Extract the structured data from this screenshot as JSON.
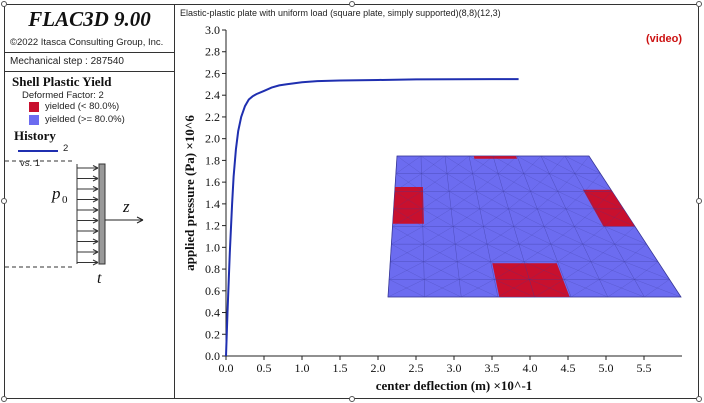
{
  "app": {
    "title": "FLAC3D 9.00",
    "copyright": "©2022 Itasca Consulting Group, Inc.",
    "mechanical_step": "Mechanical step : 287540"
  },
  "legend": {
    "shell_title": "Shell Plastic Yield",
    "deformed_factor": "Deformed Factor: 2",
    "items": [
      {
        "label": "yielded (< 80.0%)",
        "color": "#c8102e"
      },
      {
        "label": "yielded (>= 80.0%)",
        "color": "#6c6cf0"
      }
    ],
    "history_title": "History",
    "history_series": "2",
    "history_vs": "vs. 1"
  },
  "sketch": {
    "load_symbol": "p",
    "load_subscript": "0",
    "axis_label": "z",
    "thickness_label": "t"
  },
  "plot": {
    "caption": "Elastic-plastic plate with uniform load (square plate, simply supported)(8,8)(12,3)",
    "video_label": "(video)"
  },
  "colors": {
    "curve": "#1f2fb0",
    "yield_low": "#c8102e",
    "yield_high": "#6c6cf0"
  },
  "chart_data": {
    "type": "line",
    "xlabel": "center deflection (m) ×10^-1",
    "ylabel": "applied pressure (Pa) ×10^6",
    "xlim": [
      0,
      6.0
    ],
    "ylim": [
      0,
      3.0
    ],
    "xticks": [
      "0.0",
      "0.5",
      "1.0",
      "1.5",
      "2.0",
      "2.5",
      "3.0",
      "3.5",
      "4.0",
      "4.5",
      "5.0",
      "5.5"
    ],
    "yticks": [
      "0.0",
      "0.2",
      "0.4",
      "0.6",
      "0.8",
      "1.0",
      "1.2",
      "1.4",
      "1.6",
      "1.8",
      "2.0",
      "2.2",
      "2.4",
      "2.6",
      "2.8",
      "3.0"
    ],
    "series": [
      {
        "name": "2",
        "x": [
          0.0,
          0.02,
          0.05,
          0.08,
          0.1,
          0.13,
          0.16,
          0.2,
          0.25,
          0.3,
          0.35,
          0.4,
          0.5,
          0.6,
          0.7,
          0.8,
          1.0,
          1.2,
          1.5,
          2.0,
          2.5,
          3.0,
          3.5,
          3.85
        ],
        "y": [
          0.0,
          0.4,
          0.95,
          1.4,
          1.65,
          1.9,
          2.07,
          2.2,
          2.3,
          2.36,
          2.39,
          2.41,
          2.44,
          2.47,
          2.49,
          2.5,
          2.52,
          2.53,
          2.535,
          2.54,
          2.545,
          2.547,
          2.548,
          2.548
        ]
      }
    ],
    "grid": false
  }
}
